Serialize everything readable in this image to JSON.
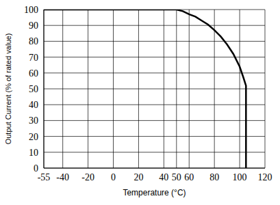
{
  "chart_data": {
    "type": "line",
    "x_label": "Temperature (°C)",
    "y_label": "Output Current (% of rated value)",
    "x": [
      -55,
      50,
      55,
      60,
      65,
      70,
      75,
      80,
      85,
      90,
      95,
      100,
      103,
      105,
      105
    ],
    "values": [
      100,
      100,
      99,
      97,
      95.5,
      93,
      90.5,
      87,
      83,
      78,
      72,
      64,
      57,
      52,
      0
    ],
    "color": "#000000",
    "xlim": [
      -55,
      120
    ],
    "ylim": [
      0,
      100
    ],
    "xticks": [
      -55,
      -40,
      -20,
      0,
      20,
      40,
      50,
      60,
      80,
      100,
      120
    ],
    "yticks": [
      0,
      10,
      20,
      30,
      40,
      50,
      60,
      70,
      80,
      90,
      100
    ],
    "grid": true
  }
}
